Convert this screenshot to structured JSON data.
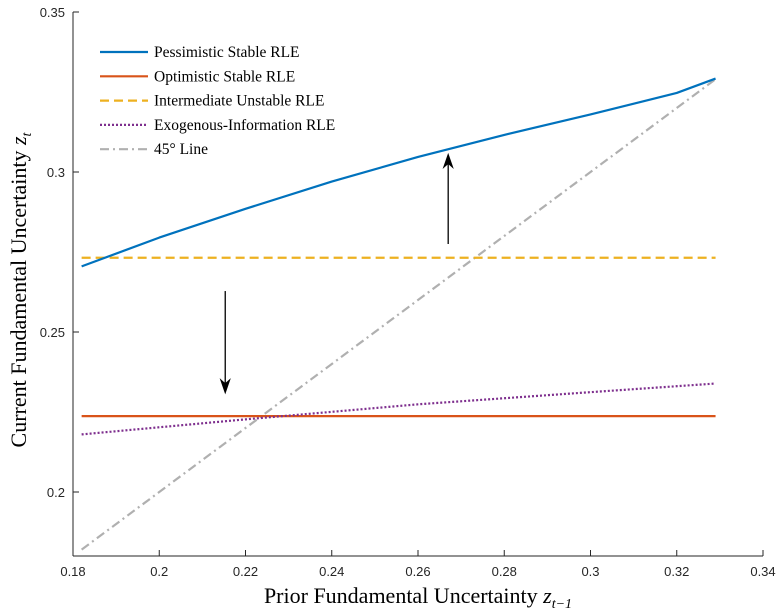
{
  "chart_data": {
    "type": "line",
    "xlabel": "Prior Fundamental Uncertainty",
    "xlabel_sub": "t−1",
    "ylabel": "Current Fundamental Uncertainty",
    "ylabel_sub": "t",
    "xlim": [
      0.18,
      0.34
    ],
    "ylim": [
      0.18,
      0.35
    ],
    "xticks": [
      0.18,
      0.2,
      0.22,
      0.24,
      0.26,
      0.28,
      0.3,
      0.32,
      0.34
    ],
    "xtick_labels": [
      "0.18",
      "0.2",
      "0.22",
      "0.24",
      "0.26",
      "0.28",
      "0.3",
      "0.32",
      "0.34"
    ],
    "yticks": [
      0.2,
      0.25,
      0.3,
      0.35
    ],
    "ytick_labels": [
      "0.2",
      "0.25",
      "0.3",
      "0.35"
    ],
    "grid": false,
    "legend_position": "top-left",
    "series": [
      {
        "name": "Pessimistic Stable RLE",
        "color": "#0072BD",
        "style": "solid",
        "x": [
          0.182,
          0.2,
          0.22,
          0.24,
          0.26,
          0.28,
          0.3,
          0.32,
          0.329
        ],
        "y": [
          0.2705,
          0.2795,
          0.2885,
          0.297,
          0.3047,
          0.3116,
          0.318,
          0.3247,
          0.3292
        ]
      },
      {
        "name": "Optimistic Stable RLE",
        "color": "#D95319",
        "style": "solid",
        "x": [
          0.182,
          0.329
        ],
        "y": [
          0.2237,
          0.2237
        ]
      },
      {
        "name": "Intermediate Unstable RLE",
        "color": "#EDB120",
        "style": "dashed",
        "x": [
          0.182,
          0.329
        ],
        "y": [
          0.2732,
          0.2732
        ]
      },
      {
        "name": "Exogenous-Information RLE",
        "color": "#7E2F8E",
        "style": "dotted",
        "x": [
          0.182,
          0.22,
          0.26,
          0.3,
          0.329
        ],
        "y": [
          0.218,
          0.2227,
          0.2274,
          0.2312,
          0.2339
        ]
      },
      {
        "name": "45° Line",
        "color": "#B0B0B0",
        "style": "dashdot",
        "x": [
          0.182,
          0.329
        ],
        "y": [
          0.182,
          0.329
        ]
      }
    ],
    "annotations": [
      {
        "type": "arrow",
        "direction": "up",
        "x": 0.267,
        "y_from": 0.2775,
        "y_to": 0.3055
      },
      {
        "type": "arrow",
        "direction": "down",
        "x": 0.2153,
        "y_from": 0.2628,
        "y_to": 0.231
      }
    ]
  }
}
